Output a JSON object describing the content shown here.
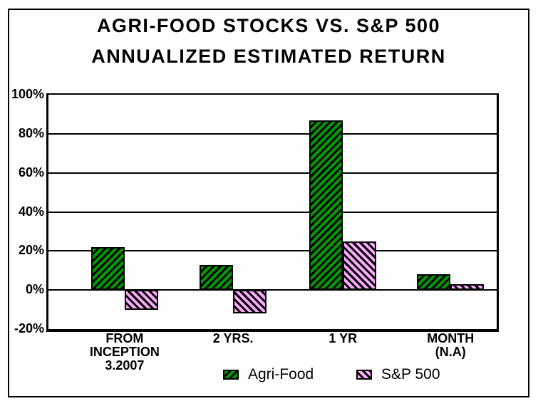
{
  "title": {
    "line1": "AGRI-FOOD STOCKS VS. S&P 500",
    "line2": "ANNUALIZED ESTIMATED RETURN"
  },
  "chart_data": {
    "type": "bar",
    "title": "AGRI-FOOD STOCKS VS. S&P 500 ANNUALIZED ESTIMATED RETURN",
    "categories": [
      "FROM\nINCEPTION\n3.2007",
      "2 YRS.",
      "1 YR",
      "MONTH\n(N.A)"
    ],
    "series": [
      {
        "name": "Agri-Food",
        "color": "#009A00",
        "hatch": "forward-diagonal",
        "values": [
          22,
          13,
          87,
          8
        ]
      },
      {
        "name": "S&P 500",
        "color": "#F9A8F9",
        "hatch": "back-diagonal",
        "values": [
          -10,
          -12,
          25,
          3
        ]
      }
    ],
    "xlabel": "",
    "ylabel": "",
    "ylim": [
      -20,
      100
    ],
    "ytick_step": 20,
    "ytick_labels": [
      "100%",
      "80%",
      "60%",
      "40%",
      "20%",
      "0%",
      "-20%"
    ],
    "grid": true,
    "legend_position": "bottom",
    "hatch_line_color": "#000000",
    "axis_color": "#000000"
  }
}
